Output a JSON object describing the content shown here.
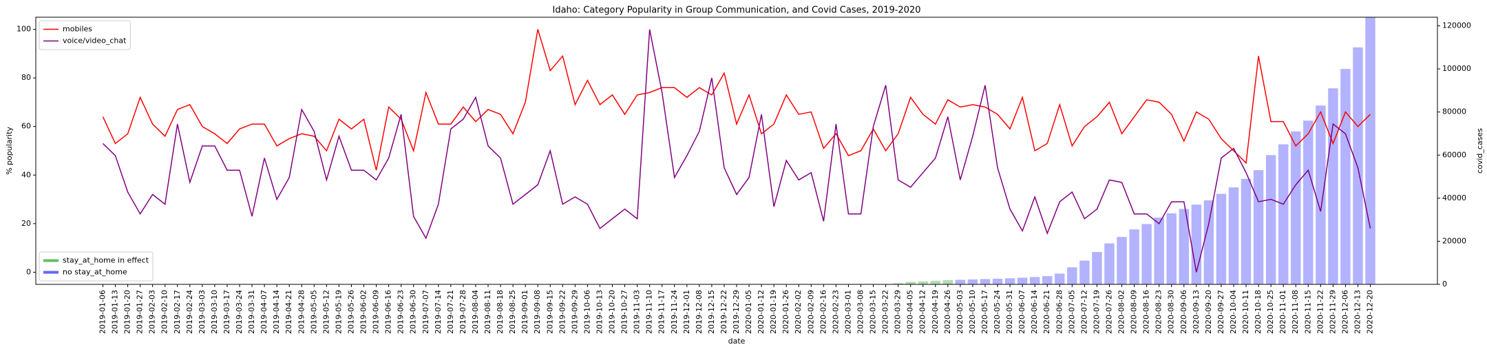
{
  "chart_data": {
    "type": "line",
    "title": "Idaho: Category Popularity in Group Communication, and Covid Cases, 2019-2020",
    "xlabel": "date",
    "ylabel": "% popularity",
    "y2label": "covid_cases",
    "categories": [
      "2019-01-06",
      "2019-01-13",
      "2019-01-20",
      "2019-01-27",
      "2019-02-03",
      "2019-02-10",
      "2019-02-17",
      "2019-02-24",
      "2019-03-03",
      "2019-03-10",
      "2019-03-17",
      "2019-03-24",
      "2019-03-31",
      "2019-04-07",
      "2019-04-14",
      "2019-04-21",
      "2019-04-28",
      "2019-05-05",
      "2019-05-12",
      "2019-05-19",
      "2019-05-26",
      "2019-06-02",
      "2019-06-09",
      "2019-06-16",
      "2019-06-23",
      "2019-06-30",
      "2019-07-07",
      "2019-07-14",
      "2019-07-21",
      "2019-07-28",
      "2019-08-04",
      "2019-08-11",
      "2019-08-18",
      "2019-08-25",
      "2019-09-01",
      "2019-09-08",
      "2019-09-15",
      "2019-09-22",
      "2019-09-29",
      "2019-10-06",
      "2019-10-13",
      "2019-10-20",
      "2019-10-27",
      "2019-11-03",
      "2019-11-10",
      "2019-11-17",
      "2019-11-24",
      "2019-12-01",
      "2019-12-08",
      "2019-12-15",
      "2019-12-22",
      "2019-12-29",
      "2020-01-05",
      "2020-01-12",
      "2020-01-19",
      "2020-01-26",
      "2020-02-02",
      "2020-02-09",
      "2020-02-16",
      "2020-02-23",
      "2020-03-01",
      "2020-03-08",
      "2020-03-15",
      "2020-03-22",
      "2020-03-29",
      "2020-04-05",
      "2020-04-12",
      "2020-04-19",
      "2020-04-26",
      "2020-05-03",
      "2020-05-10",
      "2020-05-17",
      "2020-05-24",
      "2020-05-31",
      "2020-06-07",
      "2020-06-14",
      "2020-06-21",
      "2020-06-28",
      "2020-07-05",
      "2020-07-12",
      "2020-07-19",
      "2020-07-26",
      "2020-08-02",
      "2020-08-09",
      "2020-08-16",
      "2020-08-23",
      "2020-08-30",
      "2020-09-06",
      "2020-09-13",
      "2020-09-20",
      "2020-09-27",
      "2020-10-04",
      "2020-10-11",
      "2020-10-18",
      "2020-10-25",
      "2020-11-01",
      "2020-11-08",
      "2020-11-15",
      "2020-11-22",
      "2020-11-29",
      "2020-12-06",
      "2020-12-13",
      "2020-12-20"
    ],
    "series": [
      {
        "name": "stay_at_home in effect",
        "type": "bar",
        "axis": "y2",
        "color": "#66bb66",
        "values": [
          null,
          null,
          null,
          null,
          null,
          null,
          null,
          null,
          null,
          null,
          null,
          null,
          null,
          null,
          null,
          null,
          null,
          null,
          null,
          null,
          null,
          null,
          null,
          null,
          null,
          null,
          null,
          null,
          null,
          null,
          null,
          null,
          null,
          null,
          null,
          null,
          null,
          null,
          null,
          null,
          null,
          null,
          null,
          null,
          null,
          null,
          null,
          null,
          null,
          null,
          null,
          null,
          null,
          null,
          null,
          null,
          null,
          null,
          null,
          null,
          null,
          null,
          null,
          null,
          500,
          1200,
          1400,
          1650,
          1950,
          null,
          null,
          null,
          null,
          null,
          null,
          null,
          null,
          null,
          null,
          null,
          null,
          null,
          null,
          null,
          null,
          null,
          null,
          null,
          null,
          null,
          null,
          null,
          null,
          null,
          null,
          null,
          null,
          null,
          null,
          null,
          null,
          null,
          null
        ]
      },
      {
        "name": "no stay_at_home",
        "type": "bar",
        "axis": "y2",
        "color": "#6666ff",
        "values": [
          null,
          null,
          null,
          null,
          null,
          null,
          null,
          null,
          null,
          null,
          null,
          null,
          null,
          null,
          null,
          null,
          null,
          null,
          null,
          null,
          null,
          null,
          null,
          null,
          null,
          null,
          null,
          null,
          null,
          null,
          null,
          null,
          null,
          null,
          null,
          null,
          null,
          null,
          null,
          null,
          null,
          null,
          null,
          null,
          null,
          null,
          null,
          null,
          null,
          null,
          null,
          null,
          null,
          null,
          null,
          null,
          null,
          null,
          null,
          null,
          null,
          null,
          null,
          null,
          null,
          null,
          null,
          null,
          null,
          2100,
          2300,
          2450,
          2600,
          2800,
          3100,
          3400,
          3800,
          5000,
          7900,
          11000,
          15000,
          19000,
          22000,
          25500,
          28000,
          31000,
          33000,
          35000,
          37000,
          39000,
          42000,
          45000,
          49000,
          53000,
          60000,
          65000,
          71000,
          76000,
          83000,
          91000,
          100000,
          110000,
          124000
        ]
      },
      {
        "name": "mobiles",
        "color": "#ff0000",
        "values": [
          64,
          53,
          57,
          72,
          61,
          56,
          67,
          69,
          60,
          57,
          53,
          59,
          61,
          61,
          52,
          55,
          57,
          56,
          50,
          63,
          59,
          63,
          42,
          68,
          63,
          50,
          74,
          61,
          61,
          68,
          62,
          67,
          65,
          57,
          70,
          100,
          83,
          89,
          69,
          79,
          69,
          73,
          65,
          73,
          74,
          76,
          76,
          72,
          76,
          73,
          82,
          61,
          73,
          57,
          61,
          73,
          65,
          66,
          51,
          57,
          48,
          50,
          59,
          50,
          57,
          72,
          65,
          61,
          71,
          68,
          69,
          68,
          65,
          59,
          72,
          50,
          53,
          69,
          52,
          60,
          64,
          70,
          57,
          64,
          71,
          70,
          65,
          54,
          66,
          63,
          55,
          50,
          45,
          89,
          62,
          62,
          52,
          57,
          66,
          53,
          66,
          60,
          65
        ]
      },
      {
        "name": "voice/video_chat",
        "color": "#800080",
        "values": [
          53,
          48,
          33,
          24,
          32,
          28,
          61,
          37,
          52,
          52,
          42,
          42,
          23,
          47,
          30,
          39,
          67,
          58,
          38,
          56,
          42,
          42,
          38,
          47,
          65,
          23,
          14,
          28,
          59,
          63,
          72,
          52,
          47,
          28,
          32,
          36,
          50,
          28,
          31,
          28,
          18,
          22,
          26,
          22,
          100,
          74,
          39,
          48,
          58,
          80,
          43,
          32,
          39,
          65,
          27,
          46,
          38,
          41,
          21,
          61,
          24,
          24,
          60,
          77,
          38,
          35,
          41,
          47,
          64,
          38,
          56,
          77,
          43,
          26,
          17,
          31,
          16,
          29,
          33,
          22,
          26,
          38,
          37,
          24,
          24,
          20,
          29,
          29,
          0,
          20,
          47,
          51,
          41,
          29,
          30,
          28,
          36,
          42,
          25,
          61,
          57,
          43,
          18
        ]
      }
    ],
    "ylim": [
      -5,
      105
    ],
    "yticks": [
      0,
      20,
      40,
      60,
      80,
      100
    ],
    "y2lim": [
      0,
      124000
    ],
    "y2ticks": [
      0,
      20000,
      40000,
      60000,
      80000,
      100000,
      120000
    ],
    "grid": false,
    "legend": "upper left",
    "bar_legend": "lower left"
  }
}
